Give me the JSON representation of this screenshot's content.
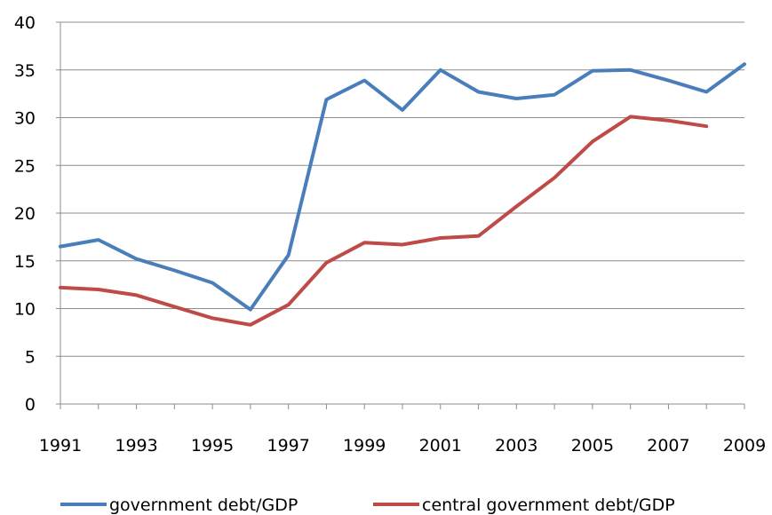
{
  "chart_data": {
    "type": "line",
    "title": "",
    "xlabel": "",
    "ylabel": "",
    "xlim": [
      1991,
      2009
    ],
    "ylim": [
      0,
      40
    ],
    "y_ticks": [
      0,
      5,
      10,
      15,
      20,
      25,
      30,
      35,
      40
    ],
    "y_tick_labels": [
      "0",
      "5",
      "10",
      "15",
      "20",
      "25",
      "30",
      "35",
      "40"
    ],
    "x_ticks": [
      1991,
      1993,
      1995,
      1997,
      1999,
      2001,
      2003,
      2005,
      2007,
      2009
    ],
    "x_tick_labels": [
      "1991",
      "1993",
      "1995",
      "1997",
      "1999",
      "2001",
      "2003",
      "2005",
      "2007",
      "2009"
    ],
    "grid": "horizontal",
    "legend_position": "bottom",
    "series": [
      {
        "name": "government debt/GDP",
        "color": "#4a7ebb",
        "x": [
          1991,
          1992,
          1993,
          1994,
          1995,
          1996,
          1997,
          1998,
          1999,
          2000,
          2001,
          2002,
          2003,
          2004,
          2005,
          2006,
          2007,
          2008,
          2009
        ],
        "values": [
          16.5,
          17.2,
          15.2,
          14.0,
          12.7,
          9.9,
          15.6,
          31.9,
          33.9,
          30.8,
          35.0,
          32.7,
          32.0,
          32.4,
          34.9,
          35.0,
          33.9,
          32.7,
          35.6
        ]
      },
      {
        "name": "central government debt/GDP",
        "color": "#be4b48",
        "x": [
          1991,
          1992,
          1993,
          1994,
          1995,
          1996,
          1997,
          1998,
          1999,
          2000,
          2001,
          2002,
          2003,
          2004,
          2005,
          2006,
          2007,
          2008
        ],
        "values": [
          12.2,
          12.0,
          11.4,
          10.2,
          9.0,
          8.3,
          10.4,
          14.8,
          16.9,
          16.7,
          17.4,
          17.6,
          20.7,
          23.7,
          27.5,
          30.1,
          29.7,
          29.1
        ]
      }
    ]
  }
}
